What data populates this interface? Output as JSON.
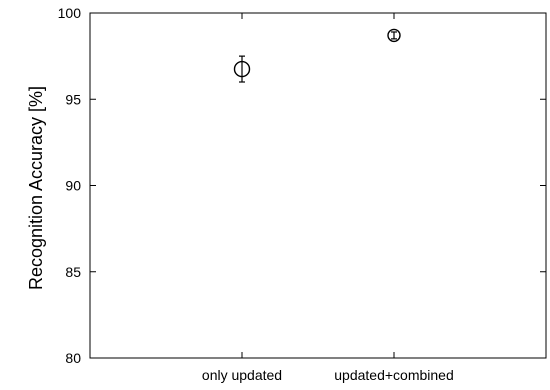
{
  "chart_data": {
    "type": "scatter",
    "title": "",
    "xlabel": "",
    "ylabel": "Recognition Accuracy [%]",
    "categories": [
      "only updated",
      "updated+combined"
    ],
    "ylim": [
      80,
      100
    ],
    "yticks": [
      80,
      85,
      90,
      95,
      100
    ],
    "grid": false,
    "legend": "none",
    "series": [
      {
        "points": [
          {
            "x": "only updated",
            "y": 96.75,
            "y_low": 96.0,
            "y_high": 97.5
          },
          {
            "x": "updated+combined",
            "y": 98.7,
            "y_low": 98.5,
            "y_high": 98.9
          }
        ]
      }
    ],
    "colors": {
      "axis": "#000000",
      "marker": "#000000",
      "background": "#ffffff"
    }
  }
}
